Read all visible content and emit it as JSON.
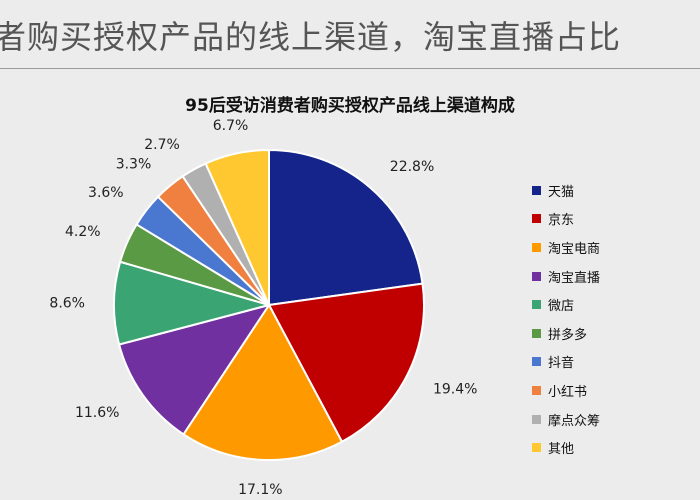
{
  "headline": "者购买授权产品的线上渠道，淘宝直播占比",
  "chart_data": {
    "type": "pie",
    "title": "95后受访消费者购买授权产品线上渠道构成",
    "legend_position": "right",
    "slices": [
      {
        "label": "天猫",
        "value": 22.8,
        "color": "#14248a"
      },
      {
        "label": "京东",
        "value": 19.4,
        "color": "#c00000"
      },
      {
        "label": "淘宝电商",
        "value": 17.1,
        "color": "#ff9900"
      },
      {
        "label": "淘宝直播",
        "value": 11.6,
        "color": "#7030a0"
      },
      {
        "label": "微店",
        "value": 8.6,
        "color": "#3aa573"
      },
      {
        "label": "拼多多",
        "value": 4.2,
        "color": "#5b9a45"
      },
      {
        "label": "抖音",
        "value": 3.6,
        "color": "#4a77d0"
      },
      {
        "label": "小红书",
        "value": 3.3,
        "color": "#f08040"
      },
      {
        "label": "摩点众筹",
        "value": 2.7,
        "color": "#b0b0b0"
      },
      {
        "label": "其他",
        "value": 6.7,
        "color": "#ffc830"
      }
    ],
    "data_labels": [
      "22.8%",
      "19.4%",
      "17.1%",
      "11.6%",
      "8.6%",
      "4.2%",
      "3.6%",
      "3.3%",
      "2.7%",
      "6.7%"
    ]
  }
}
